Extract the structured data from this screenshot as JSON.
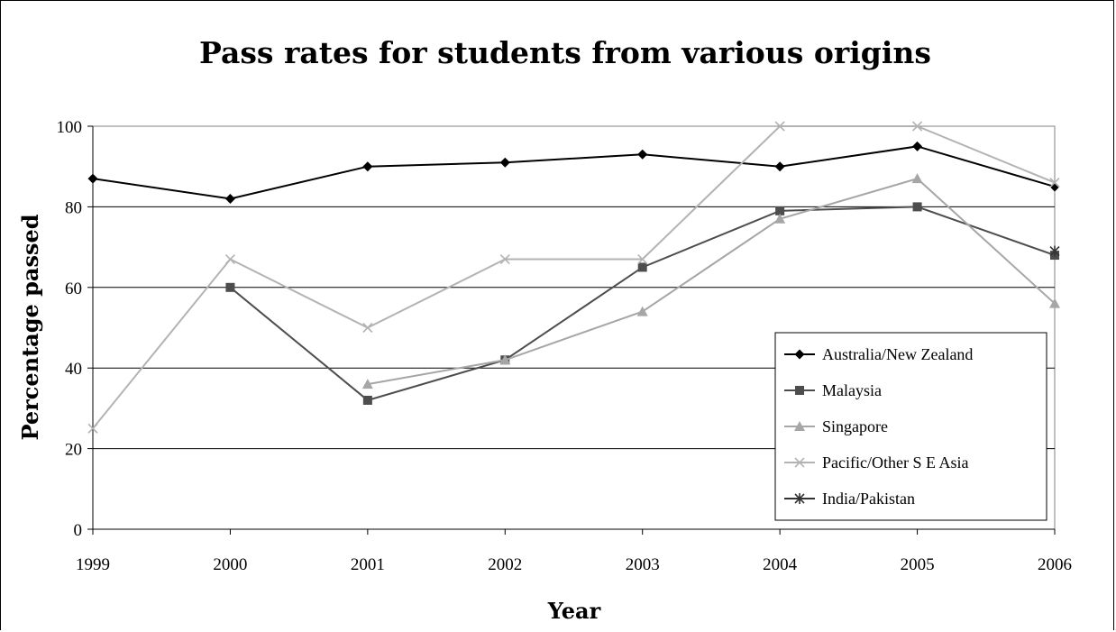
{
  "chart_data": {
    "type": "line",
    "title": "Pass rates for students from various origins",
    "xlabel": "Year",
    "ylabel": "Percentage passed",
    "x": [
      "1999",
      "2000",
      "2001",
      "2002",
      "2003",
      "2004",
      "2005",
      "2006"
    ],
    "ylim": [
      0,
      100
    ],
    "yticks": [
      0,
      20,
      40,
      60,
      80,
      100
    ],
    "grid": "horizontal",
    "legend_position": "right",
    "series": [
      {
        "name": "Australia/New Zealand",
        "color": "#000000",
        "marker": "diamond",
        "values": [
          87,
          82,
          90,
          91,
          93,
          90,
          95,
          85
        ]
      },
      {
        "name": "Malaysia",
        "color": "#4d4d4d",
        "marker": "square",
        "values": [
          null,
          60,
          32,
          42,
          65,
          79,
          80,
          68
        ]
      },
      {
        "name": "Singapore",
        "color": "#a6a6a6",
        "marker": "triangle",
        "values": [
          null,
          null,
          36,
          42,
          54,
          77,
          87,
          56
        ]
      },
      {
        "name": "Pacific/Other S E Asia",
        "color": "#b3b3b3",
        "marker": "x",
        "values": [
          25,
          67,
          50,
          67,
          67,
          100,
          100,
          86
        ]
      },
      {
        "name": "India/Pakistan",
        "color": "#333333",
        "marker": "star",
        "values": [
          null,
          null,
          null,
          null,
          null,
          null,
          null,
          69
        ]
      }
    ]
  }
}
